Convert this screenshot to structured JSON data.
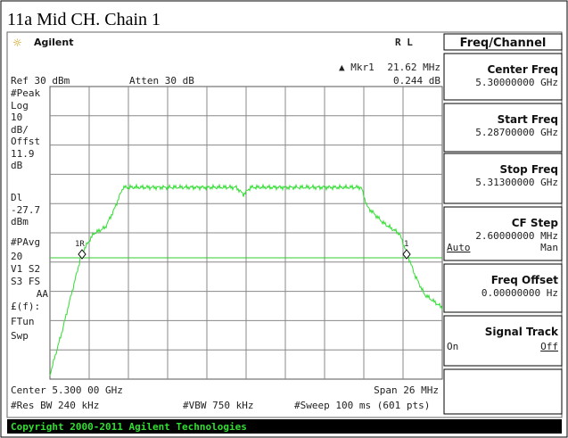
{
  "header": {
    "title": "11a Mid CH. Chain 1",
    "brand": "Agilent",
    "mode": "R L",
    "menu": "Freq/Channel"
  },
  "screen": {
    "ref": "Ref 30 dBm",
    "atten": "Atten 30 dB",
    "marker_label": "▲ Mkr1",
    "marker_freq": "21.62 MHz",
    "marker_value": "0.244 dB",
    "left_labels": [
      "#Peak",
      "Log",
      "10",
      "dB/",
      "Offst",
      "11.9",
      "dB",
      "Dl",
      "-27.7",
      "dBm",
      "#PAvg",
      "20",
      "V1  S2",
      "S3  FS",
      "AA",
      "£(f):",
      "FTun",
      "Swp"
    ],
    "marker_1r": "1R",
    "marker_1": "1",
    "center": "Center 5.300 00 GHz",
    "span": "Span 26 MHz",
    "rbw": "#Res BW 240 kHz",
    "vbw": "#VBW 750 kHz",
    "sweep": "#Sweep 100 ms (601 pts)"
  },
  "softkeys": [
    {
      "label": "Center Freq",
      "value": "5.30000000 GHz"
    },
    {
      "label": "Start Freq",
      "value": "5.28700000 GHz"
    },
    {
      "label": "Stop Freq",
      "value": "5.31300000 GHz"
    },
    {
      "label": "CF Step",
      "value": "2.60000000 MHz",
      "left": "Auto",
      "right": "Man"
    },
    {
      "label": "Freq Offset",
      "value": "0.00000000 Hz"
    },
    {
      "label": "Signal Track",
      "left": "On",
      "right": "Off"
    }
  ],
  "footer": {
    "copyright": "Copyright 2000-2011 Agilent Technologies"
  }
}
